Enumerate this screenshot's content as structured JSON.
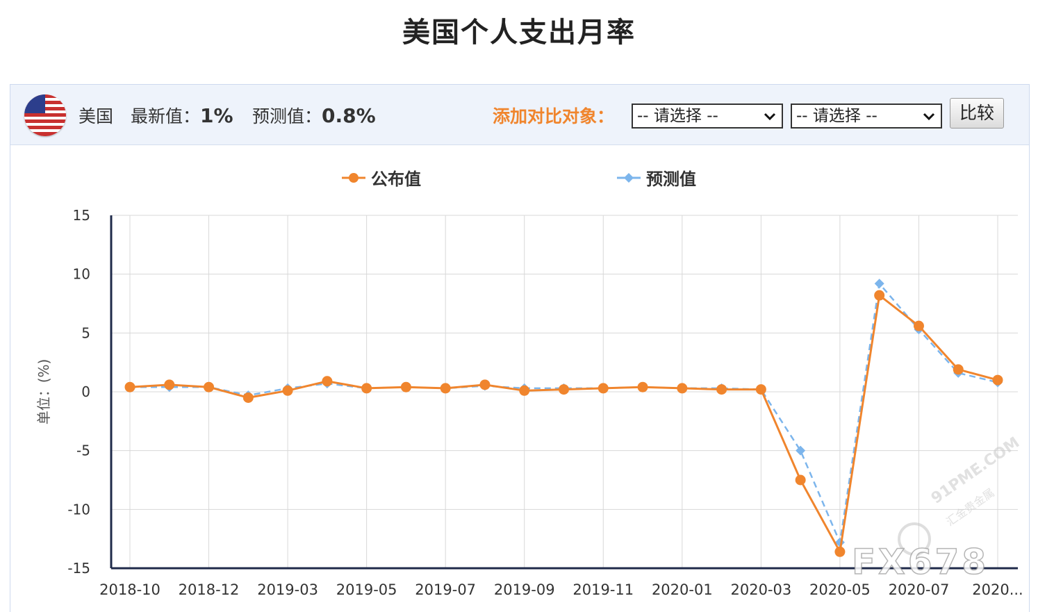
{
  "title": "美国个人支出月率",
  "toolbar": {
    "country": "美国",
    "latest_label": "最新值：",
    "latest_value": "1%",
    "forecast_label": "预测值：",
    "forecast_value": "0.8%",
    "compare_label": "添加对比对象：",
    "select1": "-- 请选择 --",
    "select2": "-- 请选择 --",
    "compare_button": "比较",
    "flag_icon": "us-flag-icon"
  },
  "colors": {
    "actual": "#f0852d",
    "forecast": "#7cb5ec",
    "axis": "#1f2a4a",
    "grid": "#d8d8d8"
  },
  "chart_data": {
    "type": "line",
    "ylabel": "单位：(%)",
    "ylim": [
      -15,
      15
    ],
    "yticks": [
      15,
      10,
      5,
      0,
      -5,
      -10,
      -15
    ],
    "grid": true,
    "legend_position": "top",
    "x": [
      "2018-10",
      "2018-11",
      "2018-12",
      "2019-01",
      "2019-03",
      "2019-04",
      "2019-05",
      "2019-06",
      "2019-07",
      "2019-08",
      "2019-09",
      "2019-10",
      "2019-11",
      "2019-12",
      "2020-01",
      "2020-02",
      "2020-03",
      "2020-04",
      "2020-05",
      "2020-06",
      "2020-07",
      "2020-08",
      "2020-09"
    ],
    "xtick_labels": [
      "2018-10",
      "2018-12",
      "2019-03",
      "2019-05",
      "2019-07",
      "2019-09",
      "2019-11",
      "2020-01",
      "2020-03",
      "2020-05",
      "2020-07",
      "2020..."
    ],
    "series": [
      {
        "name": "公布值",
        "values": [
          0.4,
          0.6,
          0.4,
          -0.5,
          0.1,
          0.9,
          0.3,
          0.4,
          0.3,
          0.6,
          0.1,
          0.2,
          0.3,
          0.4,
          0.3,
          0.2,
          0.2,
          -7.5,
          -13.6,
          8.2,
          5.6,
          1.9,
          1.0
        ]
      },
      {
        "name": "预测值",
        "values": [
          0.4,
          0.4,
          0.4,
          -0.3,
          0.3,
          0.7,
          0.3,
          0.4,
          0.3,
          0.5,
          0.3,
          0.3,
          0.3,
          0.4,
          0.3,
          0.3,
          0.2,
          -5.0,
          -12.8,
          9.2,
          5.3,
          1.6,
          0.8
        ]
      }
    ]
  },
  "watermark": {
    "brand": "FX678",
    "site": "91PME.COM",
    "site_sub": "汇金贵金属"
  }
}
